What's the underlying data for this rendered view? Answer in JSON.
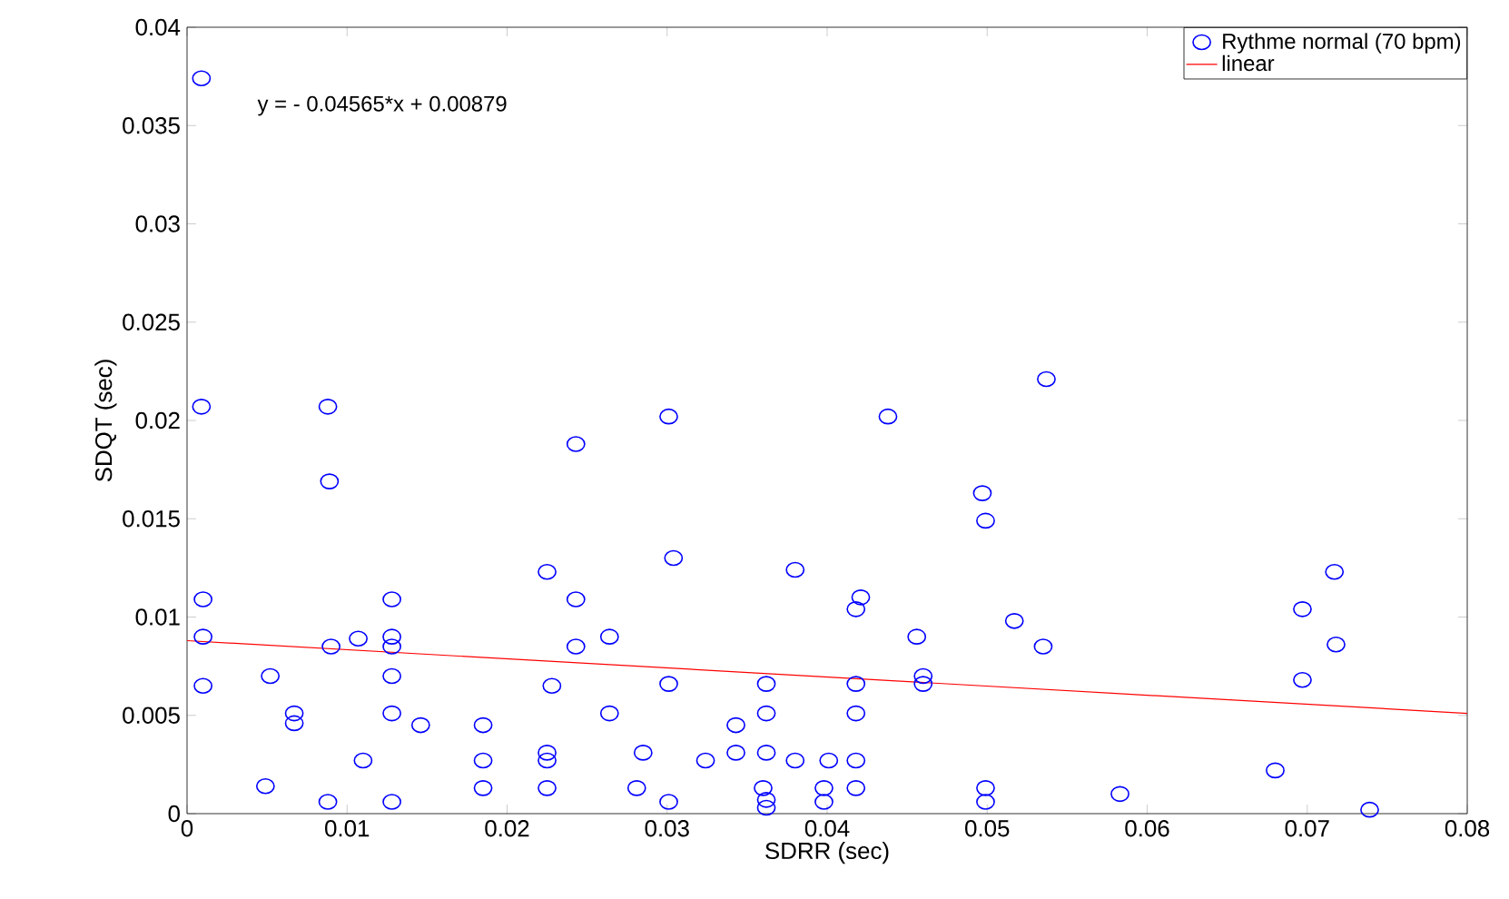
{
  "chart_data": {
    "type": "scatter",
    "xlabel": "SDRR (sec)",
    "ylabel": "SDQT (sec)",
    "xlim": [
      0,
      0.08
    ],
    "xticks": [
      0,
      0.01,
      0.02,
      0.03,
      0.04,
      0.05,
      0.06,
      0.07,
      0.08
    ],
    "ylim": [
      0,
      0.04
    ],
    "yticks": [
      0,
      0.005,
      0.01,
      0.015,
      0.02,
      0.025,
      0.03,
      0.035,
      0.04
    ],
    "grid": false,
    "legend": "top right",
    "annotations": [
      "y = - 0.04565*x + 0.00879"
    ],
    "series": [
      {
        "name": "Rythme normal (70 bpm)",
        "marker": "circle",
        "color": "#0000ff",
        "x": [
          0.0009,
          0.0009,
          0.001,
          0.001,
          0.001,
          0.0088,
          0.0089,
          0.009,
          0.0088,
          0.0049,
          0.0052,
          0.0067,
          0.0067,
          0.0107,
          0.011,
          0.0128,
          0.0128,
          0.0128,
          0.0128,
          0.0128,
          0.0128,
          0.0146,
          0.0185,
          0.0185,
          0.0185,
          0.0225,
          0.0225,
          0.0225,
          0.0225,
          0.0228,
          0.0243,
          0.0243,
          0.0243,
          0.0264,
          0.0264,
          0.0301,
          0.0304,
          0.0301,
          0.0301,
          0.0281,
          0.0285,
          0.0324,
          0.0343,
          0.0343,
          0.0362,
          0.0362,
          0.0362,
          0.036,
          0.0362,
          0.0362,
          0.038,
          0.038,
          0.0401,
          0.0398,
          0.0398,
          0.0418,
          0.0418,
          0.0418,
          0.0418,
          0.0418,
          0.0421,
          0.0438,
          0.0456,
          0.046,
          0.046,
          0.0497,
          0.0499,
          0.0499,
          0.0499,
          0.0517,
          0.0535,
          0.0537,
          0.0717,
          0.0697,
          0.0718,
          0.0697,
          0.068,
          0.0583,
          0.0739
        ],
        "values": [
          0.0374,
          0.0207,
          0.0109,
          0.009,
          0.0065,
          0.0207,
          0.0169,
          0.0085,
          0.0006,
          0.0014,
          0.007,
          0.0051,
          0.0046,
          0.0089,
          0.0027,
          0.0109,
          0.009,
          0.0085,
          0.007,
          0.0051,
          0.0006,
          0.0045,
          0.0045,
          0.0027,
          0.0013,
          0.0123,
          0.0031,
          0.0027,
          0.0013,
          0.0065,
          0.0188,
          0.0109,
          0.0085,
          0.009,
          0.0051,
          0.0202,
          0.013,
          0.0066,
          0.0006,
          0.0013,
          0.0031,
          0.0027,
          0.0045,
          0.0031,
          0.0066,
          0.0051,
          0.0031,
          0.0013,
          0.0007,
          0.0003,
          0.0124,
          0.0027,
          0.0027,
          0.0013,
          0.0006,
          0.0027,
          0.0013,
          0.0051,
          0.0066,
          0.0104,
          0.011,
          0.0202,
          0.009,
          0.007,
          0.0066,
          0.0163,
          0.0149,
          0.0013,
          0.0006,
          0.0098,
          0.0085,
          0.0221,
          0.0123,
          0.0104,
          0.0086,
          0.0068,
          0.0022,
          0.001,
          0.0002
        ]
      },
      {
        "name": "linear",
        "type": "line",
        "line_style": "solid",
        "color": "#ff0000",
        "x": [
          0,
          0.08
        ],
        "values": [
          0.0088,
          0.0051
        ]
      }
    ]
  }
}
